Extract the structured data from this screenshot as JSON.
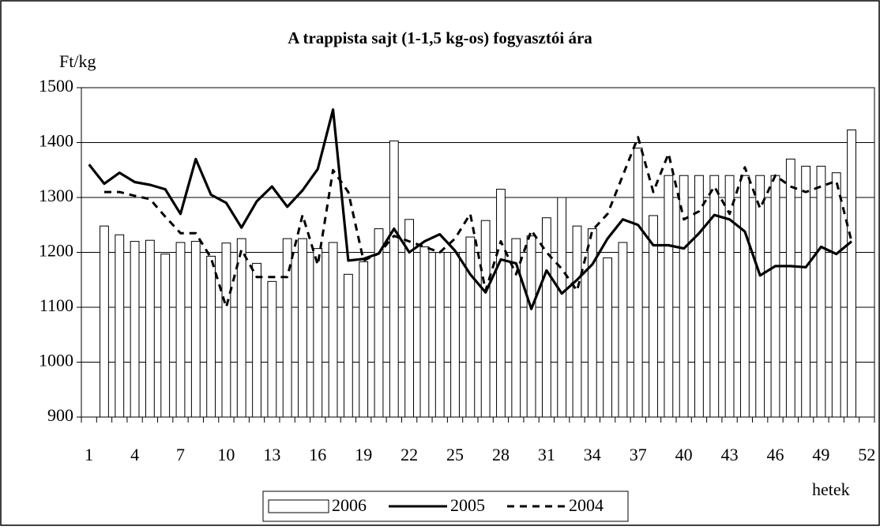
{
  "chart_data": {
    "type": "bar-line",
    "title": "A  trappista sajt (1-1,5 kg-os) fogyasztói ára",
    "y_label": "Ft/kg",
    "x_label": "hetek",
    "categories": [
      "1",
      null,
      null,
      "4",
      null,
      null,
      "7",
      null,
      null,
      "10",
      null,
      null,
      "13",
      null,
      null,
      "16",
      null,
      null,
      "19",
      null,
      null,
      "22",
      null,
      null,
      "25",
      null,
      null,
      "28",
      null,
      null,
      "31",
      null,
      null,
      "34",
      null,
      null,
      "37",
      null,
      null,
      "40",
      null,
      null,
      "43",
      null,
      null,
      "46",
      null,
      null,
      "49",
      null,
      null,
      "52"
    ],
    "ylim": [
      900,
      1500
    ],
    "yticks": [
      900,
      1000,
      1100,
      1200,
      1300,
      1400,
      1500
    ],
    "grid": true,
    "series": [
      {
        "name": "2006",
        "type": "bar",
        "color": "#ffffff",
        "values": [
          null,
          1248,
          1232,
          1220,
          1222,
          1197,
          1218,
          1220,
          1193,
          1217,
          1225,
          1180,
          1147,
          1225,
          1225,
          1207,
          1218,
          1160,
          1183,
          1243,
          1403,
          1260,
          1210,
          1200,
          1200,
          1228,
          1258,
          1315,
          1225,
          1230,
          1263,
          1300,
          1248,
          1243,
          1190,
          1218,
          1390,
          1267,
          1340,
          1340,
          1340,
          1340,
          1340,
          1340,
          1340,
          1340,
          1370,
          1357,
          1357,
          1345,
          1423,
          null
        ]
      },
      {
        "name": "2005",
        "type": "line",
        "color": "#000000",
        "values": [
          1360,
          1325,
          1345,
          1328,
          1323,
          1315,
          1270,
          1370,
          1305,
          1290,
          1245,
          1293,
          1320,
          1283,
          1313,
          1352,
          1460,
          1185,
          1188,
          1198,
          1243,
          1200,
          1220,
          1233,
          1203,
          1160,
          1127,
          1187,
          1180,
          1097,
          1167,
          1125,
          1150,
          1178,
          1225,
          1260,
          1250,
          1213,
          1213,
          1207,
          1235,
          1268,
          1260,
          1238,
          1158,
          1175,
          1175,
          1173,
          1210,
          1197,
          1220,
          null
        ]
      },
      {
        "name": "2004",
        "type": "dashed",
        "color": "#000000",
        "values": [
          null,
          1310,
          1310,
          1303,
          1297,
          1265,
          1235,
          1235,
          1190,
          1100,
          1205,
          1155,
          1155,
          1155,
          1268,
          1177,
          1350,
          1310,
          1185,
          1198,
          1230,
          1220,
          1210,
          1200,
          1225,
          1270,
          1130,
          1220,
          1160,
          1240,
          1200,
          1170,
          1130,
          1240,
          1270,
          1340,
          1410,
          1310,
          1380,
          1260,
          1275,
          1320,
          1270,
          1355,
          1280,
          1340,
          1320,
          1310,
          1320,
          1330,
          1220,
          null
        ]
      }
    ]
  }
}
